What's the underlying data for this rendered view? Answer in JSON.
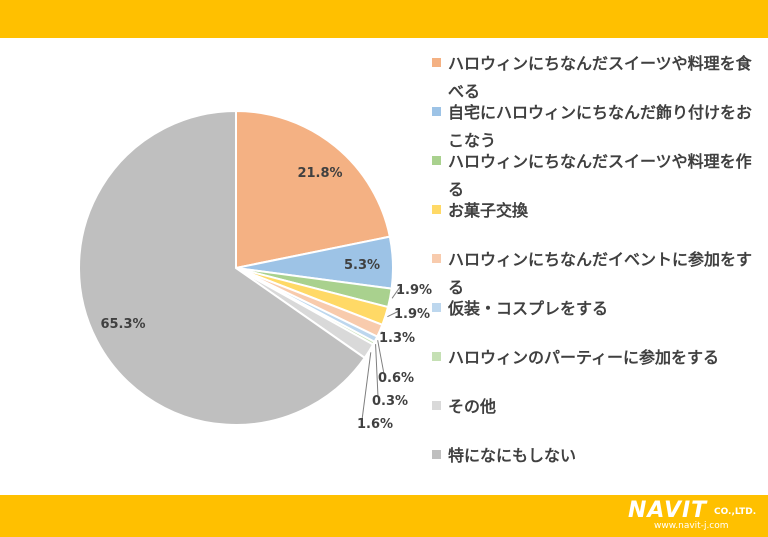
{
  "chart_data": {
    "type": "pie",
    "categories": [
      "ハロウィンにちなんだスイーツや料理を食べる",
      "自宅にハロウィンにちなんだ飾り付けをおこなう",
      "ハロウィンにちなんだスイーツや料理を作る",
      "お菓子交換",
      "ハロウィンにちなんだイベントに参加をする",
      "仮装・コスプレをする",
      "ハロウィンのパーティーに参加をする",
      "その他",
      "特になにもしない"
    ],
    "values": [
      21.8,
      5.3,
      1.9,
      1.9,
      1.3,
      0.6,
      0.3,
      1.6,
      65.3
    ],
    "labels": [
      "21.8%",
      "5.3%",
      "1.9%",
      "1.9%",
      "1.3%",
      "0.6%",
      "0.3%",
      "1.6%",
      "65.3%"
    ],
    "colors": [
      "#F4B183",
      "#9DC3E6",
      "#A9D18E",
      "#FFD966",
      "#F8CBAD",
      "#BDD7EE",
      "#C5E0B4",
      "#D9D9D9",
      "#BFBFBF"
    ],
    "legend_position": "right"
  },
  "logo": {
    "name": "NAVIT",
    "suffix": "CO.,LTD.",
    "url": "www.navit-j.com"
  }
}
